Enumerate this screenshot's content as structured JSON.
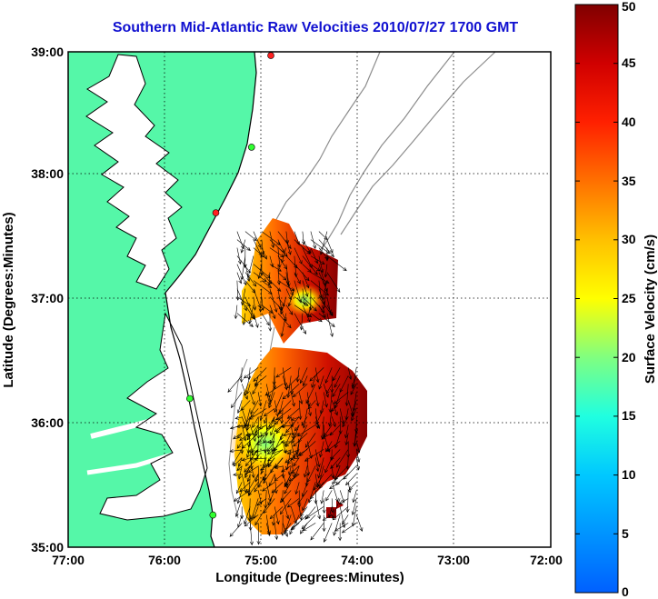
{
  "title": "Southern Mid-Atlantic Raw Velocities 2010/07/27 1700 GMT",
  "xlabel": "Longitude (Degrees:Minutes)",
  "ylabel": "Latitude (Degrees:Minutes)",
  "colorbar_label": "Surface Velocity (cm/s)",
  "x_ticks": [
    "77:00",
    "76:00",
    "75:00",
    "74:00",
    "73:00",
    "72:00"
  ],
  "y_ticks": [
    "39:00",
    "38:00",
    "37:00",
    "36:00",
    "35:00"
  ],
  "colorbar_ticks": [
    "0",
    "5",
    "10",
    "15",
    "20",
    "25",
    "30",
    "35",
    "40",
    "45",
    "50"
  ],
  "colors": {
    "land": "#55f7a8",
    "water": "#ffffff",
    "title": "#1010d0",
    "bathymetry": "#8c8c8c",
    "coastline": "#000000"
  },
  "chart_data": {
    "type": "heatmap",
    "title": "Southern Mid-Atlantic Raw Velocities 2010/07/27 1700 GMT",
    "xlabel": "Longitude (Degrees:Minutes)",
    "ylabel": "Latitude (Degrees:Minutes)",
    "xlim": [
      -77,
      -72
    ],
    "ylim": [
      35,
      39
    ],
    "colorbar_range": [
      0,
      50
    ],
    "colorbar_units": "cm/s",
    "grid": true,
    "colormap": "jet",
    "stations": [
      {
        "lon": -74.9,
        "lat": 38.97,
        "color": "#ff2020"
      },
      {
        "lon": -75.1,
        "lat": 38.23,
        "color": "#30ff30"
      },
      {
        "lon": -75.47,
        "lat": 37.7,
        "color": "#ff2020"
      },
      {
        "lon": -75.74,
        "lat": 36.2,
        "color": "#30ff30"
      },
      {
        "lon": -75.5,
        "lat": 35.26,
        "color": "#30ff30"
      }
    ],
    "velocity_regions": [
      {
        "lon_range": [
          -75.25,
          -74.3
        ],
        "lat_range": [
          36.85,
          37.55
        ],
        "speed_cm_s": 46,
        "direction_deg": 160
      },
      {
        "lon_range": [
          -75.2,
          -73.95
        ],
        "lat_range": [
          35.15,
          36.45
        ],
        "speed_cm_s": 42,
        "direction_deg": 200
      },
      {
        "lon_range": [
          -75.2,
          -74.55
        ],
        "lat_range": [
          35.55,
          36.05
        ],
        "speed_cm_s": 26,
        "direction_deg": 230
      }
    ]
  }
}
